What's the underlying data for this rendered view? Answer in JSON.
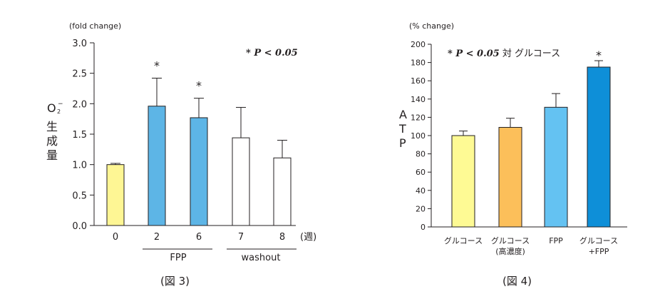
{
  "figure3": {
    "caption": "(図 3)",
    "unit": "(fold change)",
    "significance_note": "* P < 0.05",
    "ylabel": {
      "main": "O",
      "sub": "2",
      "sup": "−",
      "rest": [
        "生",
        "成",
        "量"
      ]
    },
    "x_unit": "(週)",
    "group_labels": [
      "FPP",
      "washout"
    ]
  },
  "figure4": {
    "caption": "(図 4)",
    "unit": "(% change)",
    "significance_note": {
      "stat": "* P < 0.05",
      "suffix": " 対 グルコース"
    },
    "ylabel": [
      "A",
      "T",
      "P"
    ]
  },
  "chart_data": [
    {
      "type": "bar",
      "title": "",
      "ylabel": "O2− 生成量",
      "xlabel": "(週)",
      "categories": [
        "0",
        "2",
        "6",
        "7",
        "8"
      ],
      "values": [
        1.0,
        1.96,
        1.77,
        1.44,
        1.11
      ],
      "errors": [
        0.02,
        0.46,
        0.32,
        0.5,
        0.29
      ],
      "significant": [
        false,
        true,
        true,
        false,
        false
      ],
      "colors": [
        "#fef694",
        "#5db5e6",
        "#5db5e6",
        "#ffffff",
        "#ffffff"
      ],
      "ylim": [
        0,
        3.0
      ],
      "yticks": [
        "0.0",
        "0.5",
        "1.0",
        "1.5",
        "2.0",
        "2.5",
        "3.0"
      ],
      "groups": [
        {
          "label": "FPP",
          "categories": [
            "2",
            "6"
          ]
        },
        {
          "label": "washout",
          "categories": [
            "7",
            "8"
          ]
        }
      ],
      "grid": false
    },
    {
      "type": "bar",
      "title": "",
      "ylabel": "ATP",
      "categories": [
        [
          "グルコース"
        ],
        [
          "グルコース",
          "(高濃度)"
        ],
        [
          "FPP"
        ],
        [
          "グルコース",
          "+FPP"
        ]
      ],
      "values": [
        100,
        109,
        131,
        175
      ],
      "errors": [
        5,
        10,
        15,
        7
      ],
      "significant": [
        false,
        false,
        false,
        true
      ],
      "colors": [
        "#fefa94",
        "#fcbf5a",
        "#64c2f2",
        "#0e8fd8"
      ],
      "ylim": [
        0,
        200
      ],
      "yticks": [
        "0",
        "20",
        "40",
        "60",
        "80",
        "100",
        "120",
        "140",
        "160",
        "180",
        "200"
      ],
      "grid": false
    }
  ]
}
